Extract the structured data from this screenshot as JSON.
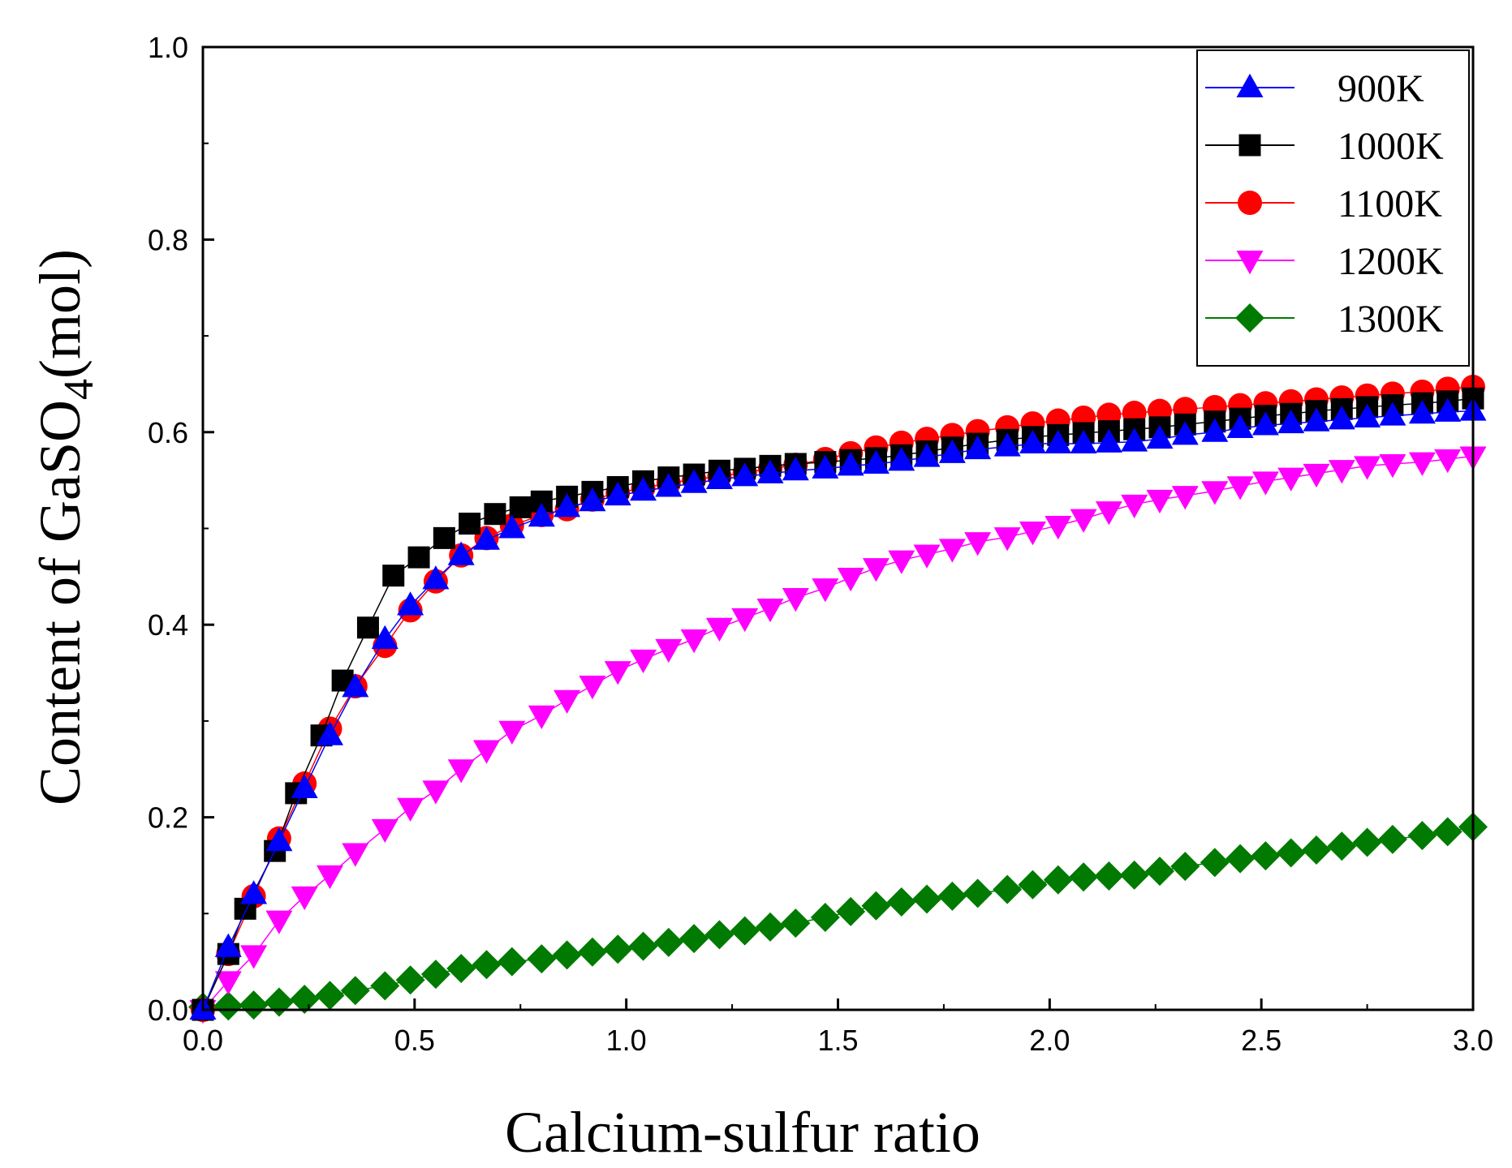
{
  "chart_data": {
    "type": "line",
    "title": "",
    "xlabel": "Calcium-sulfur ratio",
    "ylabel": {
      "prefix": "Content of GaSO",
      "sub": "4",
      "suffix": "(mol)"
    },
    "xlim": [
      0,
      3.0
    ],
    "ylim": [
      0,
      1.0
    ],
    "x_ticks": [
      "0.0",
      "0.5",
      "1.0",
      "1.5",
      "2.0",
      "2.5",
      "3.0"
    ],
    "y_ticks": [
      "0.0",
      "0.2",
      "0.4",
      "0.6",
      "0.8",
      "1.0"
    ],
    "grid": false,
    "legend_position": "top-right",
    "series": [
      {
        "name": "900K",
        "color": "#0000ff",
        "marker": "triangle-up",
        "x": [
          0.0,
          0.06,
          0.12,
          0.18,
          0.24,
          0.3,
          0.36,
          0.43,
          0.49,
          0.55,
          0.61,
          0.67,
          0.73,
          0.8,
          0.86,
          0.92,
          0.98,
          1.04,
          1.1,
          1.16,
          1.22,
          1.28,
          1.34,
          1.4,
          1.47,
          1.53,
          1.59,
          1.65,
          1.71,
          1.77,
          1.83,
          1.9,
          1.96,
          2.02,
          2.08,
          2.14,
          2.2,
          2.26,
          2.32,
          2.39,
          2.45,
          2.51,
          2.57,
          2.63,
          2.69,
          2.75,
          2.81,
          2.88,
          2.94,
          3.0
        ],
        "y": [
          0.0,
          0.065,
          0.12,
          0.175,
          0.23,
          0.285,
          0.335,
          0.385,
          0.42,
          0.447,
          0.472,
          0.488,
          0.5,
          0.512,
          0.522,
          0.528,
          0.534,
          0.539,
          0.543,
          0.547,
          0.551,
          0.554,
          0.557,
          0.56,
          0.562,
          0.565,
          0.567,
          0.57,
          0.574,
          0.578,
          0.582,
          0.585,
          0.588,
          0.588,
          0.588,
          0.589,
          0.59,
          0.593,
          0.597,
          0.6,
          0.604,
          0.607,
          0.609,
          0.611,
          0.613,
          0.615,
          0.617,
          0.619,
          0.621,
          0.622
        ]
      },
      {
        "name": "1000K",
        "color": "#000000",
        "marker": "square",
        "x": [
          0.0,
          0.06,
          0.1,
          0.17,
          0.22,
          0.28,
          0.33,
          0.39,
          0.45,
          0.51,
          0.57,
          0.63,
          0.69,
          0.75,
          0.8,
          0.86,
          0.92,
          0.98,
          1.04,
          1.1,
          1.16,
          1.22,
          1.28,
          1.34,
          1.4,
          1.47,
          1.53,
          1.59,
          1.65,
          1.71,
          1.77,
          1.83,
          1.9,
          1.96,
          2.02,
          2.08,
          2.14,
          2.2,
          2.26,
          2.32,
          2.39,
          2.45,
          2.51,
          2.57,
          2.63,
          2.69,
          2.75,
          2.81,
          2.88,
          2.94,
          3.0
        ],
        "y": [
          0.0,
          0.058,
          0.105,
          0.165,
          0.225,
          0.285,
          0.342,
          0.397,
          0.451,
          0.47,
          0.49,
          0.505,
          0.515,
          0.522,
          0.528,
          0.533,
          0.538,
          0.543,
          0.549,
          0.553,
          0.556,
          0.56,
          0.562,
          0.565,
          0.567,
          0.569,
          0.571,
          0.573,
          0.576,
          0.58,
          0.584,
          0.588,
          0.592,
          0.595,
          0.597,
          0.599,
          0.601,
          0.603,
          0.605,
          0.608,
          0.611,
          0.614,
          0.617,
          0.619,
          0.622,
          0.624,
          0.626,
          0.628,
          0.63,
          0.632,
          0.635
        ]
      },
      {
        "name": "1100K",
        "color": "#ff0000",
        "marker": "circle",
        "x": [
          0.0,
          0.06,
          0.12,
          0.18,
          0.24,
          0.3,
          0.36,
          0.43,
          0.49,
          0.55,
          0.61,
          0.67,
          0.73,
          0.8,
          0.86,
          0.92,
          0.98,
          1.04,
          1.1,
          1.16,
          1.22,
          1.28,
          1.34,
          1.4,
          1.47,
          1.53,
          1.59,
          1.65,
          1.71,
          1.77,
          1.83,
          1.9,
          1.96,
          2.02,
          2.08,
          2.14,
          2.2,
          2.26,
          2.32,
          2.39,
          2.45,
          2.51,
          2.57,
          2.63,
          2.69,
          2.75,
          2.81,
          2.88,
          2.94,
          3.0
        ],
        "y": [
          0.0,
          0.058,
          0.118,
          0.178,
          0.235,
          0.292,
          0.336,
          0.378,
          0.415,
          0.445,
          0.472,
          0.49,
          0.503,
          0.514,
          0.52,
          0.53,
          0.537,
          0.542,
          0.547,
          0.551,
          0.554,
          0.558,
          0.562,
          0.566,
          0.572,
          0.578,
          0.584,
          0.589,
          0.593,
          0.597,
          0.601,
          0.605,
          0.609,
          0.612,
          0.615,
          0.618,
          0.62,
          0.622,
          0.624,
          0.626,
          0.628,
          0.63,
          0.632,
          0.634,
          0.636,
          0.638,
          0.64,
          0.642,
          0.645,
          0.647
        ]
      },
      {
        "name": "1200K",
        "color": "#ff00ff",
        "marker": "triangle-down",
        "x": [
          0.0,
          0.06,
          0.12,
          0.18,
          0.24,
          0.3,
          0.36,
          0.43,
          0.49,
          0.55,
          0.61,
          0.67,
          0.73,
          0.8,
          0.86,
          0.92,
          0.98,
          1.04,
          1.1,
          1.16,
          1.22,
          1.28,
          1.34,
          1.4,
          1.47,
          1.53,
          1.59,
          1.65,
          1.71,
          1.77,
          1.83,
          1.9,
          1.96,
          2.02,
          2.08,
          2.14,
          2.2,
          2.26,
          2.32,
          2.39,
          2.45,
          2.51,
          2.57,
          2.63,
          2.69,
          2.75,
          2.81,
          2.88,
          2.94,
          3.0
        ],
        "y": [
          0.0,
          0.03,
          0.057,
          0.093,
          0.118,
          0.14,
          0.163,
          0.188,
          0.21,
          0.228,
          0.25,
          0.27,
          0.29,
          0.306,
          0.322,
          0.337,
          0.352,
          0.364,
          0.375,
          0.385,
          0.397,
          0.407,
          0.417,
          0.428,
          0.438,
          0.449,
          0.459,
          0.467,
          0.473,
          0.479,
          0.486,
          0.491,
          0.497,
          0.503,
          0.51,
          0.518,
          0.525,
          0.53,
          0.534,
          0.539,
          0.544,
          0.549,
          0.553,
          0.557,
          0.561,
          0.565,
          0.567,
          0.569,
          0.572,
          0.575
        ]
      },
      {
        "name": "1300K",
        "color": "#007a00",
        "marker": "diamond",
        "x": [
          0.0,
          0.06,
          0.12,
          0.18,
          0.24,
          0.3,
          0.36,
          0.43,
          0.49,
          0.55,
          0.61,
          0.67,
          0.73,
          0.8,
          0.86,
          0.92,
          0.98,
          1.04,
          1.1,
          1.16,
          1.22,
          1.28,
          1.34,
          1.4,
          1.47,
          1.53,
          1.59,
          1.65,
          1.71,
          1.77,
          1.83,
          1.9,
          1.96,
          2.02,
          2.08,
          2.14,
          2.2,
          2.26,
          2.32,
          2.39,
          2.45,
          2.51,
          2.57,
          2.63,
          2.69,
          2.75,
          2.81,
          2.88,
          2.94,
          3.0
        ],
        "y": [
          0.003,
          0.004,
          0.005,
          0.008,
          0.011,
          0.015,
          0.02,
          0.025,
          0.031,
          0.037,
          0.043,
          0.047,
          0.05,
          0.053,
          0.057,
          0.06,
          0.063,
          0.066,
          0.07,
          0.074,
          0.078,
          0.082,
          0.086,
          0.09,
          0.096,
          0.102,
          0.108,
          0.112,
          0.115,
          0.118,
          0.121,
          0.125,
          0.13,
          0.135,
          0.138,
          0.139,
          0.14,
          0.144,
          0.149,
          0.153,
          0.157,
          0.16,
          0.163,
          0.166,
          0.17,
          0.174,
          0.177,
          0.181,
          0.185,
          0.19
        ]
      }
    ]
  }
}
